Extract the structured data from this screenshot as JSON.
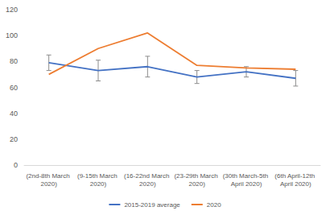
{
  "chart_data": {
    "type": "line",
    "categories": [
      "(2nd-8th March 2020)",
      "(9-15th March 2020)",
      "(16-22nd March 2020)",
      "(23-29th March 2020)",
      "(30th March-5th April 2020)",
      "(6th April-12th April 2020)"
    ],
    "series": [
      {
        "name": "2015-2019 average",
        "color": "#4472c4",
        "values": [
          79,
          73,
          76,
          68,
          72,
          67
        ],
        "errors": [
          6,
          8,
          8,
          5,
          4,
          6
        ]
      },
      {
        "name": "2020",
        "color": "#ed7d31",
        "values": [
          70,
          90,
          102,
          77,
          75,
          74
        ]
      }
    ],
    "ylim": [
      0,
      120
    ],
    "yticks": [
      0,
      20,
      40,
      60,
      80,
      100,
      120
    ],
    "grid": false,
    "legend": "bottom"
  }
}
